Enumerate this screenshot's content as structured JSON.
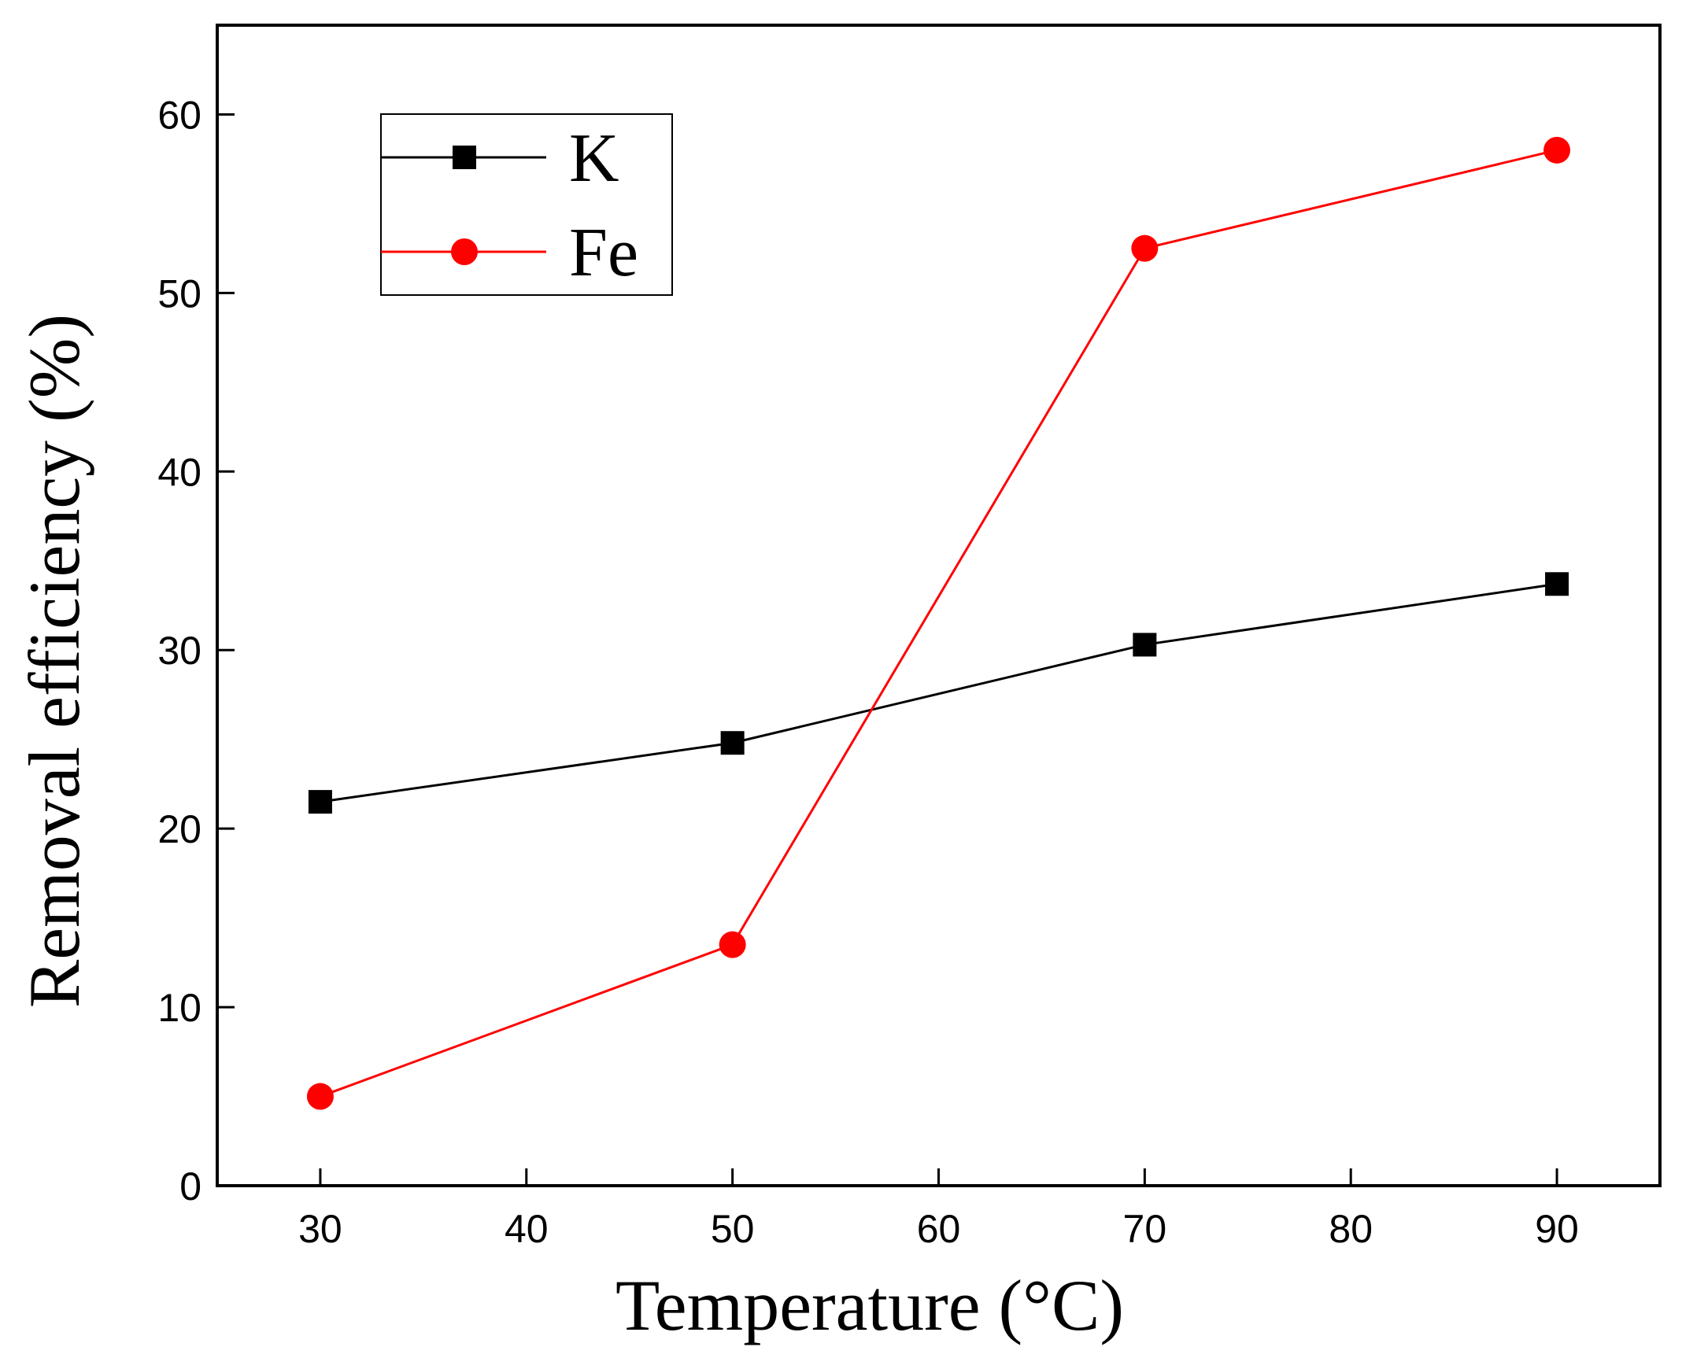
{
  "chart_data": {
    "type": "line",
    "title": "",
    "xlabel": "Temperature (°C)",
    "ylabel": "Removal efficiency (%)",
    "xlim": [
      25,
      95
    ],
    "ylim": [
      0,
      65
    ],
    "xticks": [
      30,
      40,
      50,
      60,
      70,
      80,
      90
    ],
    "yticks": [
      0,
      10,
      20,
      30,
      40,
      50,
      60
    ],
    "grid": false,
    "legend_position": "top-left",
    "x": [
      30,
      50,
      70,
      90
    ],
    "series": [
      {
        "name": "K",
        "marker": "square",
        "color": "#000000",
        "values": [
          21.5,
          24.8,
          30.3,
          33.7
        ]
      },
      {
        "name": "Fe",
        "marker": "circle",
        "color": "#ff0000",
        "values": [
          5.0,
          13.5,
          52.5,
          58.0
        ]
      }
    ]
  }
}
